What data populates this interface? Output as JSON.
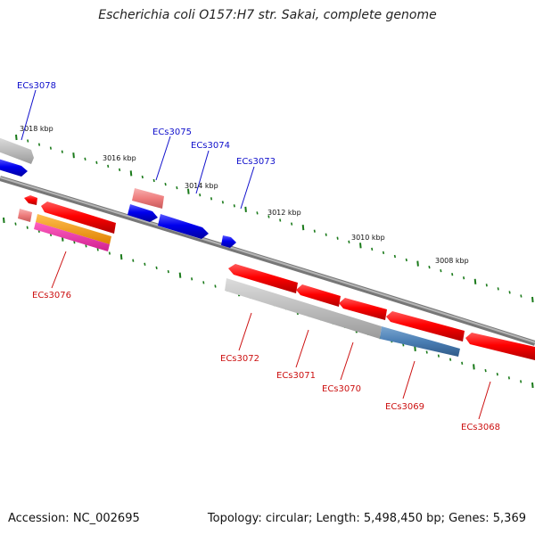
{
  "title": "Escherichia coli O157:H7 str. Sakai, complete genome",
  "footer": {
    "accession": "Accession: NC_002695",
    "summary": "Topology: circular; Length: 5,498,450 bp; Genes: 5,369"
  },
  "tick_labels": [
    "3018 kbp",
    "3016 kbp",
    "3014 kbp",
    "3012 kbp",
    "3010 kbp",
    "3008 kbp"
  ],
  "gene_labels": {
    "top": [
      "ECs3078",
      "ECs3075",
      "ECs3074",
      "ECs3073"
    ],
    "bottom": [
      "ECs3076",
      "ECs3072",
      "ECs3071",
      "ECs3070",
      "ECs3069",
      "ECs3068"
    ]
  },
  "colors": {
    "top_label": "#1010cc",
    "bottom_label": "#cc1010",
    "tick": "#1a7a1a",
    "backbone": "#8a8a8a"
  }
}
